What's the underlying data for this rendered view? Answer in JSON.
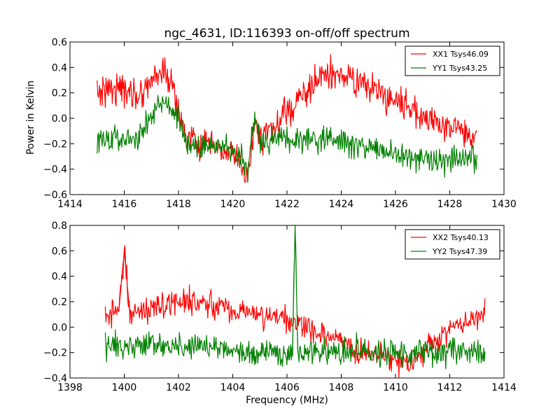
{
  "chart_data": [
    {
      "type": "line",
      "title": "ngc_4631, ID:116393 on-off/off spectrum",
      "xlabel": "",
      "ylabel": "Power in Kelvin",
      "xlim": [
        1414,
        1430
      ],
      "ylim": [
        -0.6,
        0.6
      ],
      "xticks": [
        "1414",
        "1416",
        "1418",
        "1420",
        "1422",
        "1424",
        "1426",
        "1428",
        "1430"
      ],
      "yticks": [
        "0.6",
        "0.4",
        "0.2",
        "0.0",
        "−0.2",
        "−0.4",
        "−0.6"
      ],
      "legend_position": "top-right",
      "grid": false,
      "series": [
        {
          "name": "XX1 Tsys46.09",
          "color": "#ff0000",
          "x": [
            1415.0,
            1415.5,
            1416.0,
            1416.5,
            1417.0,
            1417.3,
            1417.7,
            1418.0,
            1418.3,
            1418.7,
            1419.0,
            1419.5,
            1420.0,
            1420.3,
            1420.55,
            1420.8,
            1421.0,
            1421.5,
            1422.0,
            1422.5,
            1423.0,
            1423.5,
            1424.0,
            1424.5,
            1425.0,
            1425.5,
            1426.0,
            1426.5,
            1427.0,
            1427.5,
            1428.0,
            1428.5,
            1429.0
          ],
          "y": [
            0.2,
            0.25,
            0.22,
            0.18,
            0.3,
            0.38,
            0.3,
            0.05,
            -0.15,
            -0.2,
            -0.22,
            -0.25,
            -0.3,
            -0.35,
            -0.5,
            0.0,
            -0.15,
            -0.1,
            0.05,
            0.15,
            0.28,
            0.35,
            0.33,
            0.3,
            0.25,
            0.18,
            0.15,
            0.1,
            0.0,
            -0.02,
            -0.08,
            -0.1,
            -0.12
          ],
          "noise": 0.06
        },
        {
          "name": "YY1 Tsys43.25",
          "color": "#008000",
          "x": [
            1415.0,
            1415.5,
            1416.0,
            1416.5,
            1417.0,
            1417.3,
            1417.7,
            1418.0,
            1418.3,
            1418.7,
            1419.0,
            1419.5,
            1420.0,
            1420.3,
            1420.55,
            1420.8,
            1421.0,
            1421.5,
            1422.0,
            1422.5,
            1423.0,
            1423.5,
            1424.0,
            1424.5,
            1425.0,
            1425.5,
            1426.0,
            1426.5,
            1427.0,
            1427.5,
            1428.0,
            1428.5,
            1429.0
          ],
          "y": [
            -0.18,
            -0.16,
            -0.15,
            -0.17,
            0.0,
            0.12,
            0.08,
            0.0,
            -0.2,
            -0.22,
            -0.22,
            -0.22,
            -0.25,
            -0.3,
            -0.42,
            0.0,
            -0.2,
            -0.18,
            -0.15,
            -0.15,
            -0.17,
            -0.18,
            -0.2,
            -0.22,
            -0.23,
            -0.25,
            -0.28,
            -0.3,
            -0.32,
            -0.33,
            -0.33,
            -0.32,
            -0.3
          ],
          "noise": 0.05
        }
      ]
    },
    {
      "type": "line",
      "title": "",
      "xlabel": "Frequency (MHz)",
      "ylabel": "",
      "xlim": [
        1398,
        1414
      ],
      "ylim": [
        -0.4,
        0.8
      ],
      "xticks": [
        "1398",
        "1400",
        "1402",
        "1404",
        "1406",
        "1408",
        "1410",
        "1412",
        "1414"
      ],
      "yticks": [
        "0.8",
        "0.6",
        "0.4",
        "0.2",
        "0.0",
        "−0.2",
        "−0.4"
      ],
      "legend_position": "top-right",
      "grid": false,
      "series": [
        {
          "name": "XX2 Tsys40.13",
          "color": "#ff0000",
          "x": [
            1399.3,
            1399.8,
            1400.0,
            1400.2,
            1401.0,
            1402.0,
            1403.0,
            1404.0,
            1405.0,
            1406.0,
            1406.3,
            1406.6,
            1407.0,
            1408.0,
            1409.0,
            1410.0,
            1410.5,
            1411.0,
            1411.5,
            1412.0,
            1412.5,
            1413.0,
            1413.3
          ],
          "y": [
            0.1,
            0.12,
            0.6,
            0.12,
            0.15,
            0.2,
            0.18,
            0.15,
            0.1,
            0.06,
            0.0,
            0.02,
            -0.02,
            -0.12,
            -0.2,
            -0.26,
            -0.27,
            -0.22,
            -0.1,
            0.0,
            0.05,
            0.08,
            0.12
          ],
          "noise": 0.05
        },
        {
          "name": "YY2 Tsys47.39",
          "color": "#008000",
          "x": [
            1399.3,
            1399.8,
            1400.0,
            1400.2,
            1401.0,
            1402.0,
            1403.0,
            1404.0,
            1405.0,
            1406.0,
            1406.2,
            1406.3,
            1406.4,
            1407.0,
            1408.0,
            1409.0,
            1410.0,
            1410.5,
            1411.0,
            1411.5,
            1412.0,
            1412.5,
            1413.0,
            1413.3
          ],
          "y": [
            -0.15,
            -0.16,
            -0.15,
            -0.15,
            -0.13,
            -0.15,
            -0.15,
            -0.18,
            -0.2,
            -0.22,
            -0.2,
            0.8,
            -0.2,
            -0.2,
            -0.18,
            -0.2,
            -0.22,
            -0.22,
            -0.2,
            -0.2,
            -0.18,
            -0.2,
            -0.2,
            -0.2
          ],
          "noise": 0.05
        }
      ]
    }
  ]
}
